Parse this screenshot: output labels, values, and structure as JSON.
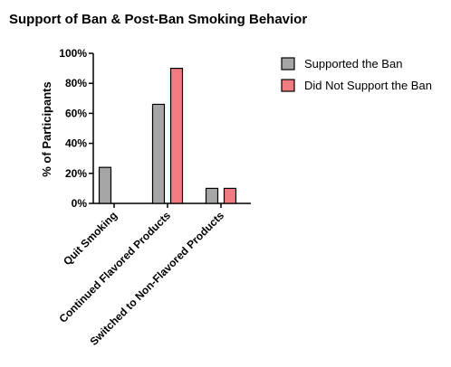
{
  "chart_data": {
    "type": "bar",
    "title": "Support of Ban & Post-Ban Smoking Behavior",
    "ylabel": "% of Participants",
    "xlabel": "",
    "categories": [
      "Quit Smoking",
      "Continued Flavored Products",
      "Switched to Non-Flavored Products"
    ],
    "series": [
      {
        "name": "Supported the Ban",
        "values": [
          24,
          66,
          10
        ],
        "color": "#a6a6a6"
      },
      {
        "name": "Did Not Support the Ban",
        "values": [
          0,
          90,
          10
        ],
        "color": "#f07b80"
      }
    ],
    "ylim": [
      0,
      100
    ],
    "yticks": [
      "0%",
      "20%",
      "40%",
      "60%",
      "80%",
      "100%"
    ],
    "ytick_values": [
      0,
      20,
      40,
      60,
      80,
      100
    ],
    "grid": false,
    "legend_position": "top-right"
  }
}
